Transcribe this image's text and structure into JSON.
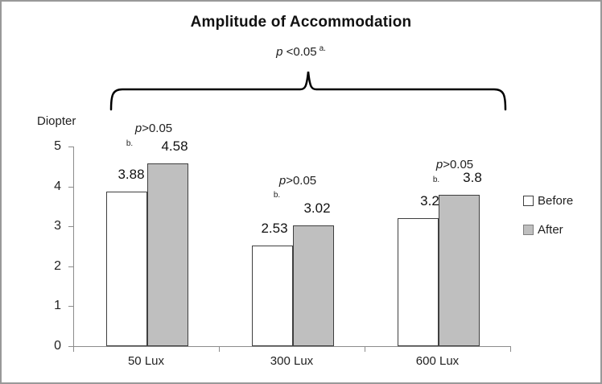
{
  "chart_data": {
    "type": "bar",
    "title": "Amplitude of Accommodation",
    "ylabel": "Diopter",
    "xlabel": "",
    "categories": [
      "50 Lux",
      "300 Lux",
      "600 Lux"
    ],
    "series": [
      {
        "name": "Before",
        "values": [
          3.88,
          2.53,
          3.2
        ],
        "labels": [
          "3.88",
          "2.53",
          "3.2"
        ],
        "fill": "#FFFFFF"
      },
      {
        "name": "After",
        "values": [
          4.58,
          3.02,
          3.8
        ],
        "labels": [
          "4.58",
          "3.02",
          "3.8"
        ],
        "fill": "#BFBFBF"
      }
    ],
    "ylim": [
      0,
      5
    ],
    "yticks": [
      "5",
      "4",
      "3",
      "2",
      "1",
      "0"
    ],
    "grid": "off",
    "legend_position": "right"
  },
  "annotations": {
    "overall": {
      "p": "p",
      "rest": " <0.05",
      "sup": "a."
    },
    "groups": [
      {
        "p": "p",
        "rest": ">0.05",
        "sub": "b."
      },
      {
        "p": "p",
        "rest": ">0.05",
        "sub": "b."
      },
      {
        "p": "p",
        "rest": ">0.05",
        "sub": "b."
      }
    ]
  },
  "colors": {
    "before_fill": "#FFFFFF",
    "after_fill": "#BFBFBF",
    "bar_border": "#3F3F3F",
    "axis": "#8C8C8C",
    "frame_border": "#999999"
  }
}
